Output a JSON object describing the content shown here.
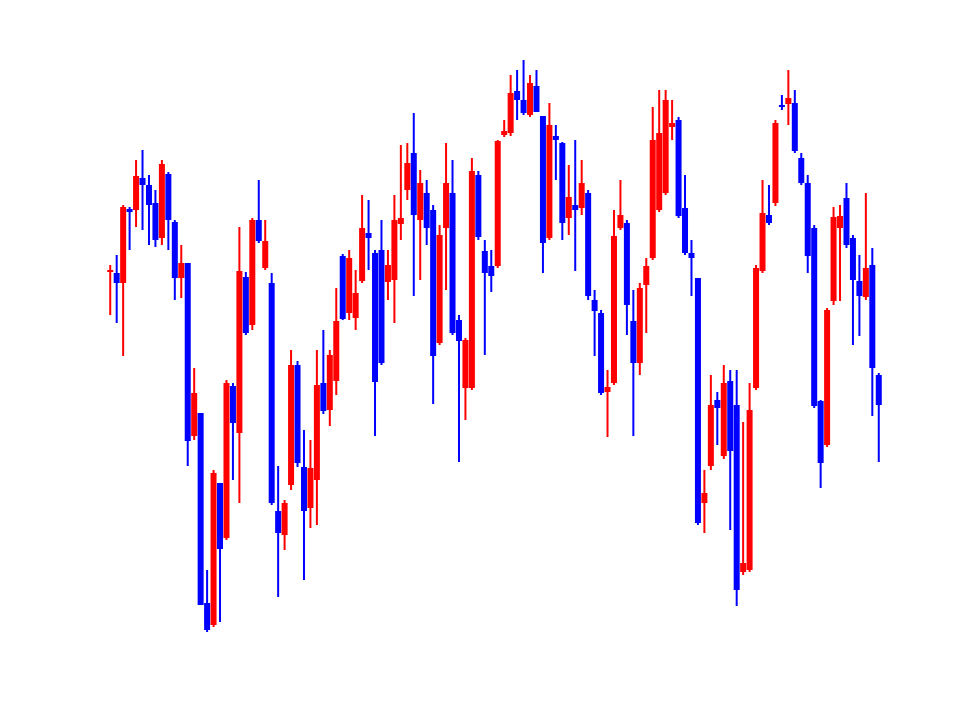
{
  "chart_data": {
    "type": "candlestick",
    "up_color": "#ff0000",
    "down_color": "#0000ff",
    "ylim": [
      80,
      680
    ],
    "open": [
      448,
      447,
      437,
      511,
      510,
      542,
      535,
      517,
      482,
      546,
      498,
      442,
      457,
      284,
      307,
      117,
      95,
      237,
      182,
      334,
      287,
      443,
      395,
      500,
      452,
      437,
      209,
      185,
      235,
      355,
      253,
      212,
      240,
      337,
      310,
      339,
      464,
      407,
      402,
      439,
      487,
      467,
      470,
      438,
      440,
      496,
      530,
      567,
      500,
      527,
      510,
      377,
      492,
      527,
      400,
      332,
      332,
      545,
      469,
      454,
      454,
      585,
      587,
      629,
      620,
      605,
      634,
      604,
      482,
      584,
      577,
      502,
      515,
      512,
      527,
      420,
      407,
      328,
      337,
      492,
      497,
      399,
      357,
      435,
      462,
      510,
      527,
      593,
      600,
      512,
      467,
      442,
      217,
      254,
      320,
      264,
      339,
      315,
      148,
      150,
      332,
      449,
      505,
      517,
      615,
      616,
      617,
      562,
      537,
      492,
      319,
      275,
      419,
      492,
      522,
      482,
      439,
      423,
      455,
      345
    ],
    "high": [
      455,
      465,
      515,
      513,
      560,
      570,
      545,
      530,
      560,
      548,
      500,
      475,
      457,
      352,
      307,
      150,
      250,
      237,
      340,
      337,
      493,
      448,
      502,
      540,
      500,
      447,
      254,
      220,
      370,
      359,
      290,
      280,
      370,
      390,
      370,
      432,
      466,
      470,
      450,
      525,
      520,
      470,
      500,
      470,
      525,
      575,
      577,
      607,
      550,
      540,
      515,
      495,
      577,
      560,
      405,
      382,
      562,
      549,
      480,
      470,
      580,
      600,
      645,
      650,
      660,
      645,
      650,
      604,
      617,
      595,
      578,
      555,
      580,
      560,
      530,
      430,
      410,
      350,
      510,
      540,
      500,
      430,
      437,
      462,
      613,
      630,
      630,
      620,
      603,
      545,
      480,
      442,
      250,
      345,
      328,
      355,
      350,
      350,
      298,
      337,
      455,
      540,
      535,
      600,
      625,
      650,
      630,
      567,
      545,
      495,
      320,
      412,
      513,
      515,
      537,
      485,
      465,
      527,
      472,
      347
    ],
    "low": [
      405,
      397,
      364,
      470,
      493,
      490,
      475,
      473,
      475,
      470,
      420,
      422,
      254,
      280,
      115,
      88,
      93,
      98,
      180,
      240,
      217,
      385,
      390,
      477,
      450,
      215,
      123,
      170,
      230,
      253,
      140,
      192,
      195,
      306,
      294,
      325,
      400,
      400,
      390,
      437,
      450,
      284,
      355,
      420,
      397,
      480,
      520,
      424,
      440,
      475,
      316,
      375,
      430,
      385,
      258,
      300,
      330,
      480,
      365,
      428,
      452,
      583,
      584,
      600,
      605,
      603,
      608,
      447,
      480,
      540,
      480,
      485,
      449,
      505,
      420,
      364,
      325,
      283,
      335,
      490,
      385,
      284,
      345,
      387,
      460,
      508,
      525,
      580,
      502,
      465,
      424,
      195,
      187,
      250,
      275,
      261,
      190,
      114,
      145,
      148,
      330,
      447,
      495,
      514,
      610,
      595,
      567,
      535,
      447,
      312,
      232,
      273,
      415,
      419,
      472,
      375,
      384,
      420,
      304,
      258
    ],
    "close": [
      450,
      437,
      513,
      508,
      544,
      535,
      515,
      480,
      556,
      500,
      442,
      457,
      279,
      327,
      115,
      90,
      247,
      171,
      337,
      297,
      449,
      387,
      500,
      479,
      479,
      217,
      187,
      217,
      355,
      257,
      209,
      252,
      335,
      309,
      365,
      399,
      401,
      462,
      427,
      492,
      482,
      338,
      357,
      455,
      500,
      502,
      557,
      505,
      537,
      492,
      364,
      485,
      537,
      387,
      379,
      380,
      549,
      483,
      447,
      444,
      579,
      589,
      627,
      620,
      607,
      637,
      608,
      477,
      595,
      580,
      497,
      523,
      510,
      537,
      424,
      409,
      327,
      333,
      484,
      505,
      415,
      357,
      432,
      454,
      580,
      587,
      620,
      597,
      504,
      467,
      462,
      197,
      227,
      315,
      312,
      337,
      269,
      130,
      157,
      310,
      452,
      507,
      497,
      597,
      613,
      622,
      569,
      537,
      464,
      314,
      257,
      410,
      503,
      504,
      475,
      440,
      424,
      452,
      352,
      315
    ]
  }
}
